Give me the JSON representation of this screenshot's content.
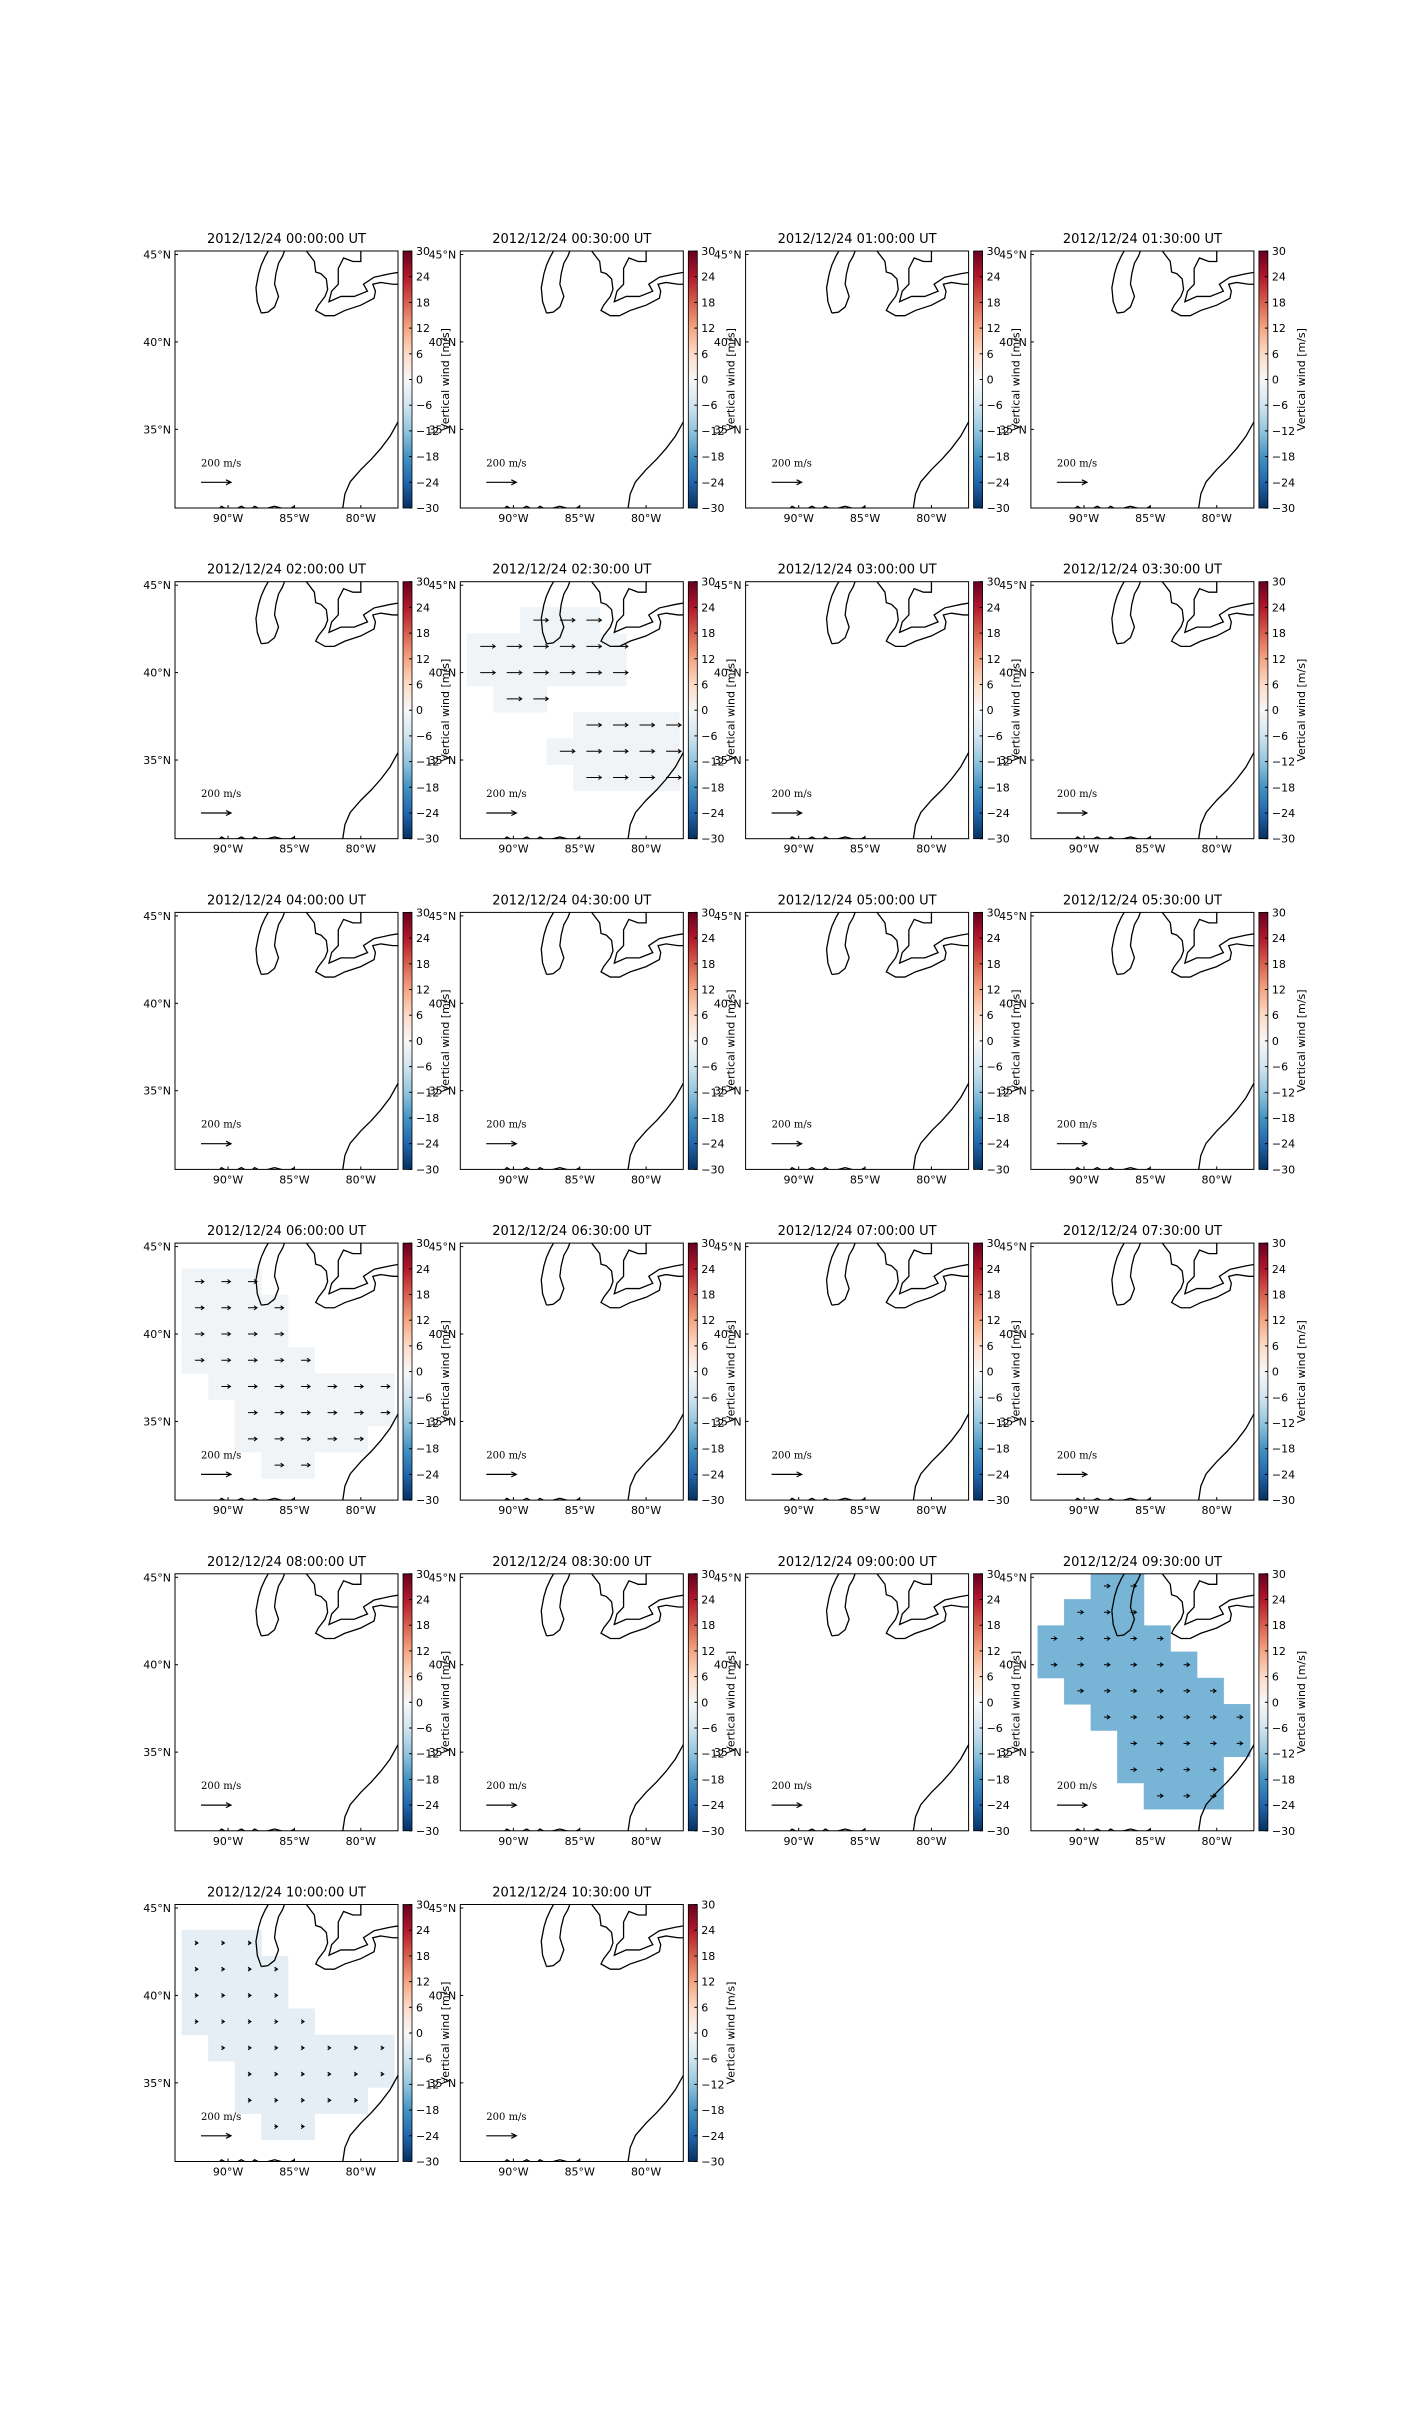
{
  "figure": {
    "xlim": [
      -94,
      -77.2
    ],
    "ylim": [
      30.5,
      45.2
    ],
    "lon_ticks": [
      {
        "value": -90,
        "label": "90°W"
      },
      {
        "value": -85,
        "label": "85°W"
      },
      {
        "value": -80,
        "label": "80°W"
      }
    ],
    "lat_ticks": [
      {
        "value": 45,
        "label": "45°N"
      },
      {
        "value": 40,
        "label": "40°N"
      },
      {
        "value": 35,
        "label": "35°N"
      }
    ],
    "colorbar": {
      "label": "Vertical wind [m/s]",
      "clim": [
        -30,
        30
      ],
      "ticks": [
        30,
        24,
        18,
        12,
        6,
        0,
        {
          "value": -6,
          "label": "−6"
        },
        {
          "value": -12,
          "label": "−12"
        },
        {
          "value": -18,
          "label": "−18"
        },
        {
          "value": -24,
          "label": "−24"
        },
        {
          "value": -30,
          "label": "−30"
        }
      ],
      "colormap": [
        "#053061",
        "#2166ac",
        "#4393c3",
        "#92c5de",
        "#d1e5f0",
        "#f7f7f7",
        "#fddbc7",
        "#f4a582",
        "#d6604d",
        "#b2182b",
        "#67001f"
      ]
    },
    "reference_arrow": {
      "value": 200,
      "label": "200 m/s"
    },
    "panels": [
      {
        "title": "2012/12/24 00:00:00 UT"
      },
      {
        "title": "2012/12/24 00:30:00 UT"
      },
      {
        "title": "2012/12/24 01:00:00 UT"
      },
      {
        "title": "2012/12/24 01:30:00 UT"
      },
      {
        "title": "2012/12/24 02:00:00 UT"
      },
      {
        "title": "2012/12/24 02:30:00 UT",
        "field": {
          "lon": [
            -88.5,
            -86.5,
            -84.5,
            -92.5,
            -90.5,
            -88.5,
            -86.5,
            -84.5,
            -82.5,
            -92.5,
            -90.5,
            -88.5,
            -86.5,
            -84.5,
            -82.5,
            -90.5,
            -88.5,
            -84.5,
            -82.5,
            -80.5,
            -78.5,
            -86.5,
            -84.5,
            -82.5,
            -80.5,
            -78.5,
            -84.5,
            -82.5,
            -80.5,
            -78.5
          ],
          "lat": [
            43,
            43,
            43,
            41.5,
            41.5,
            41.5,
            41.5,
            41.5,
            41.5,
            40,
            40,
            40,
            40,
            40,
            40,
            38.5,
            38.5,
            37,
            37,
            37,
            37,
            35.5,
            35.5,
            35.5,
            35.5,
            35.5,
            34,
            34,
            34,
            34
          ],
          "w": [
            -1,
            -1,
            -1,
            -1,
            -1,
            -1,
            -1,
            -1,
            -1,
            -1,
            -1,
            -1,
            -1,
            -1,
            -1,
            -1,
            -1,
            -1,
            -1,
            -1,
            -1,
            -1,
            -1,
            -1,
            -1,
            -1,
            -1,
            -1,
            -1,
            -1
          ],
          "u": [
            100,
            100,
            100,
            100,
            100,
            100,
            100,
            100,
            100,
            100,
            100,
            100,
            100,
            100,
            100,
            100,
            100,
            100,
            100,
            100,
            100,
            100,
            100,
            100,
            100,
            100,
            100,
            100,
            100,
            100
          ]
        }
      },
      {
        "title": "2012/12/24 03:00:00 UT"
      },
      {
        "title": "2012/12/24 03:30:00 UT"
      },
      {
        "title": "2012/12/24 04:00:00 UT"
      },
      {
        "title": "2012/12/24 04:30:00 UT"
      },
      {
        "title": "2012/12/24 05:00:00 UT"
      },
      {
        "title": "2012/12/24 05:30:00 UT"
      },
      {
        "title": "2012/12/24 06:00:00 UT",
        "field": {
          "lon": [
            -92.5,
            -90.5,
            -88.5,
            -92.5,
            -90.5,
            -88.5,
            -86.5,
            -92.5,
            -90.5,
            -88.5,
            -86.5,
            -92.5,
            -90.5,
            -88.5,
            -86.5,
            -84.5,
            -90.5,
            -88.5,
            -86.5,
            -84.5,
            -82.5,
            -80.5,
            -78.5,
            -88.5,
            -86.5,
            -84.5,
            -82.5,
            -80.5,
            -78.5,
            -88.5,
            -86.5,
            -84.5,
            -82.5,
            -80.5,
            -86.5,
            -84.5
          ],
          "lat": [
            43,
            43,
            43,
            41.5,
            41.5,
            41.5,
            41.5,
            40,
            40,
            40,
            40,
            38.5,
            38.5,
            38.5,
            38.5,
            38.5,
            37,
            37,
            37,
            37,
            37,
            37,
            37,
            35.5,
            35.5,
            35.5,
            35.5,
            35.5,
            35.5,
            34,
            34,
            34,
            34,
            34,
            32.5,
            32.5
          ],
          "w": [
            -1,
            -1,
            -1,
            -1,
            -1,
            -1,
            -1,
            -1,
            -1,
            -1,
            -1,
            -1,
            -1,
            -1,
            -1,
            -1,
            -1,
            -1,
            -1,
            -1,
            -1,
            -1,
            -1,
            -1,
            -1,
            -1,
            -1,
            -1,
            -1,
            -1,
            -1,
            -1,
            -1,
            -1,
            -1,
            -1
          ],
          "u": [
            60,
            60,
            60,
            60,
            60,
            60,
            60,
            60,
            60,
            60,
            60,
            60,
            60,
            60,
            60,
            60,
            60,
            60,
            60,
            60,
            60,
            60,
            60,
            60,
            60,
            60,
            60,
            60,
            60,
            60,
            60,
            60,
            60,
            60,
            60,
            60
          ]
        }
      },
      {
        "title": "2012/12/24 06:30:00 UT"
      },
      {
        "title": "2012/12/24 07:00:00 UT"
      },
      {
        "title": "2012/12/24 07:30:00 UT"
      },
      {
        "title": "2012/12/24 08:00:00 UT"
      },
      {
        "title": "2012/12/24 08:30:00 UT"
      },
      {
        "title": "2012/12/24 09:00:00 UT"
      },
      {
        "title": "2012/12/24 09:30:00 UT",
        "field": {
          "lon": [
            -88.5,
            -86.5,
            -90.5,
            -88.5,
            -86.5,
            -92.5,
            -90.5,
            -88.5,
            -86.5,
            -84.5,
            -92.5,
            -90.5,
            -88.5,
            -86.5,
            -84.5,
            -82.5,
            -90.5,
            -88.5,
            -86.5,
            -84.5,
            -82.5,
            -80.5,
            -88.5,
            -86.5,
            -84.5,
            -82.5,
            -80.5,
            -78.5,
            -86.5,
            -84.5,
            -82.5,
            -80.5,
            -78.5,
            -86.5,
            -84.5,
            -82.5,
            -80.5,
            -84.5,
            -82.5,
            -80.5
          ],
          "lat": [
            44.5,
            44.5,
            43,
            43,
            43,
            41.5,
            41.5,
            41.5,
            41.5,
            41.5,
            40,
            40,
            40,
            40,
            40,
            40,
            38.5,
            38.5,
            38.5,
            38.5,
            38.5,
            38.5,
            37,
            37,
            37,
            37,
            37,
            37,
            35.5,
            35.5,
            35.5,
            35.5,
            35.5,
            34,
            34,
            34,
            34,
            32.5,
            32.5,
            32.5
          ],
          "w": [
            -14,
            -14,
            -14,
            -14,
            -14,
            -14,
            -14,
            -14,
            -14,
            -14,
            -14,
            -14,
            -14,
            -14,
            -14,
            -14,
            -14,
            -14,
            -14,
            -14,
            -14,
            -14,
            -14,
            -14,
            -14,
            -14,
            -14,
            -14,
            -14,
            -14,
            -14,
            -14,
            -14,
            -14,
            -14,
            -14,
            -14,
            -14,
            -14,
            -14
          ],
          "u": [
            40,
            40,
            40,
            40,
            40,
            40,
            40,
            40,
            40,
            40,
            40,
            40,
            40,
            40,
            40,
            40,
            40,
            40,
            40,
            40,
            40,
            40,
            40,
            40,
            40,
            40,
            40,
            40,
            40,
            40,
            40,
            40,
            40,
            40,
            40,
            40,
            40,
            40,
            40,
            40
          ]
        }
      },
      {
        "title": "2012/12/24 10:00:00 UT",
        "field": {
          "lon": [
            -92.5,
            -90.5,
            -88.5,
            -92.5,
            -90.5,
            -88.5,
            -86.5,
            -92.5,
            -90.5,
            -88.5,
            -86.5,
            -92.5,
            -90.5,
            -88.5,
            -86.5,
            -84.5,
            -90.5,
            -88.5,
            -86.5,
            -84.5,
            -82.5,
            -80.5,
            -78.5,
            -88.5,
            -86.5,
            -84.5,
            -82.5,
            -80.5,
            -78.5,
            -88.5,
            -86.5,
            -84.5,
            -82.5,
            -80.5,
            -86.5,
            -84.5
          ],
          "lat": [
            43,
            43,
            43,
            41.5,
            41.5,
            41.5,
            41.5,
            40,
            40,
            40,
            40,
            38.5,
            38.5,
            38.5,
            38.5,
            38.5,
            37,
            37,
            37,
            37,
            37,
            37,
            37,
            35.5,
            35.5,
            35.5,
            35.5,
            35.5,
            35.5,
            34,
            34,
            34,
            34,
            34,
            32.5,
            32.5
          ],
          "w": [
            -3,
            -3,
            -3,
            -3,
            -3,
            -3,
            -3,
            -3,
            -3,
            -3,
            -3,
            -3,
            -3,
            -3,
            -3,
            -3,
            -3,
            -3,
            -3,
            -3,
            -3,
            -3,
            -3,
            -3,
            -3,
            -3,
            -3,
            -3,
            -3,
            -3,
            -3,
            -3,
            -3,
            -3,
            -3,
            -3
          ],
          "u": [
            20,
            20,
            20,
            20,
            20,
            20,
            20,
            20,
            20,
            20,
            20,
            20,
            20,
            20,
            20,
            20,
            20,
            20,
            20,
            20,
            20,
            20,
            20,
            20,
            20,
            20,
            20,
            20,
            20,
            20,
            20,
            20,
            20,
            20,
            20,
            20
          ]
        }
      },
      {
        "title": "2012/12/24 10:30:00 UT"
      }
    ]
  }
}
